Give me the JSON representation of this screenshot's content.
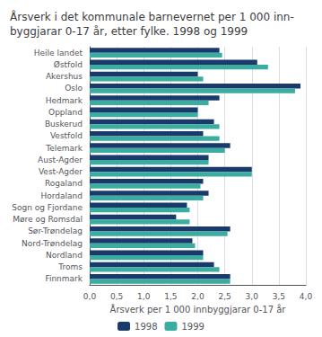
{
  "chart_data": {
    "type": "bar",
    "orientation": "horizontal",
    "title": "Årsverk i det kommunale barnevernet per 1 000 inn-\nbyggjarar 0-17 år, etter fylke. 1998 og 1999",
    "categories": [
      "Heile landet",
      "Østfold",
      "Akershus",
      "Oslo",
      "Hedmark",
      "Oppland",
      "Buskerud",
      "Vestfold",
      "Telemark",
      "Aust-Agder",
      "Vest-Agder",
      "Rogaland",
      "Hordaland",
      "Sogn og Fjordane",
      "Møre og Romsdal",
      "Sør-Trøndelag",
      "Nord-Trøndelag",
      "Nordland",
      "Troms",
      "Finnmark"
    ],
    "series": [
      {
        "name": "1998",
        "color": "#1a3a6b",
        "values": [
          2.4,
          3.1,
          2.0,
          3.9,
          2.4,
          2.0,
          2.3,
          2.1,
          2.6,
          2.2,
          3.0,
          2.1,
          2.2,
          1.8,
          1.6,
          2.6,
          1.9,
          2.1,
          2.3,
          2.6
        ]
      },
      {
        "name": "1999",
        "color": "#3aada0",
        "values": [
          2.45,
          3.3,
          2.1,
          3.8,
          2.2,
          2.0,
          2.4,
          2.4,
          2.5,
          2.2,
          3.0,
          2.05,
          2.1,
          1.85,
          1.85,
          2.55,
          1.95,
          2.1,
          2.4,
          2.6
        ]
      }
    ],
    "xlabel": "Årsverk per 1 000 innbyggjarar 0-17 år",
    "xlim": [
      0,
      4.0
    ],
    "xticks": [
      {
        "value": 0.0,
        "label": "0,0"
      },
      {
        "value": 0.5,
        "label": "0,5"
      },
      {
        "value": 1.0,
        "label": "1,0"
      },
      {
        "value": 1.5,
        "label": "1,5"
      },
      {
        "value": 2.0,
        "label": "2,0"
      },
      {
        "value": 2.5,
        "label": "2,5"
      },
      {
        "value": 3.0,
        "label": "3,0"
      },
      {
        "value": 3.5,
        "label": "3,5"
      },
      {
        "value": 4.0,
        "label": "4,0"
      }
    ],
    "grid": true,
    "legend": "bottom"
  }
}
